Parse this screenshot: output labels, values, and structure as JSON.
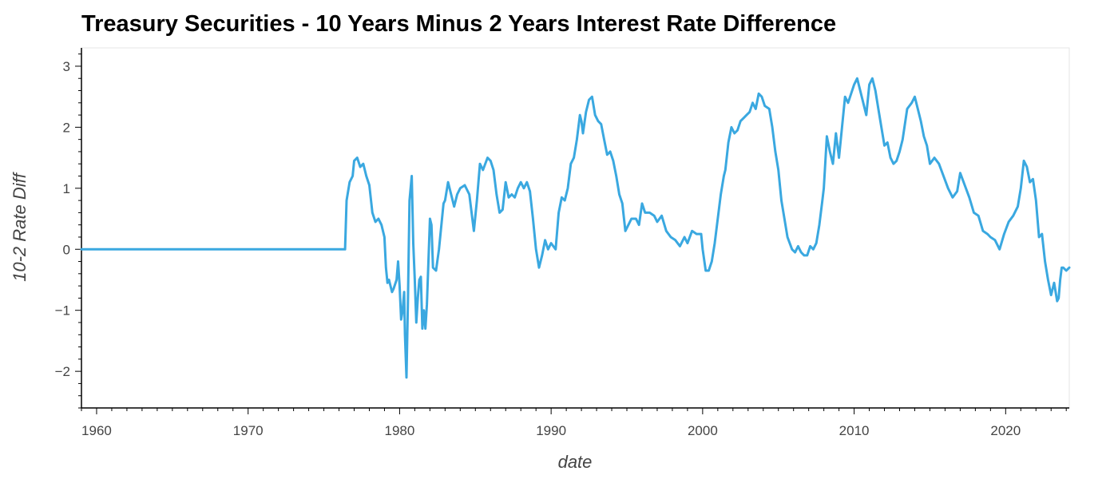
{
  "chart_data": {
    "type": "line",
    "title": "Treasury Securities - 10 Years Minus 2 Years Interest Rate Difference",
    "xlabel": "date",
    "ylabel": "10-2 Rate Diff",
    "xlim": [
      1959.0,
      2024.2
    ],
    "ylim": [
      -2.6,
      3.3
    ],
    "x_ticks": [
      1960,
      1970,
      1980,
      1990,
      2000,
      2010,
      2020
    ],
    "x_tick_labels": [
      "1960",
      "1970",
      "1980",
      "1990",
      "2000",
      "2010",
      "2020"
    ],
    "y_ticks": [
      -2,
      -1,
      0,
      1,
      2,
      3
    ],
    "y_tick_labels": [
      "−2",
      "−1",
      "0",
      "1",
      "2",
      "3"
    ],
    "grid": false,
    "legend": "none",
    "series": [
      {
        "color": "#3aa8e0",
        "points": [
          [
            1959.0,
            0
          ],
          [
            1976.4,
            0
          ],
          [
            1976.5,
            0.8
          ],
          [
            1976.7,
            1.1
          ],
          [
            1976.9,
            1.2
          ],
          [
            1977.0,
            1.45
          ],
          [
            1977.2,
            1.5
          ],
          [
            1977.4,
            1.35
          ],
          [
            1977.6,
            1.4
          ],
          [
            1977.8,
            1.2
          ],
          [
            1978.0,
            1.05
          ],
          [
            1978.2,
            0.6
          ],
          [
            1978.4,
            0.45
          ],
          [
            1978.6,
            0.5
          ],
          [
            1978.8,
            0.4
          ],
          [
            1979.0,
            0.2
          ],
          [
            1979.1,
            -0.3
          ],
          [
            1979.2,
            -0.55
          ],
          [
            1979.3,
            -0.5
          ],
          [
            1979.5,
            -0.7
          ],
          [
            1979.6,
            -0.65
          ],
          [
            1979.8,
            -0.5
          ],
          [
            1979.9,
            -0.2
          ],
          [
            1980.0,
            -0.6
          ],
          [
            1980.1,
            -1.15
          ],
          [
            1980.2,
            -1.0
          ],
          [
            1980.3,
            -0.7
          ],
          [
            1980.35,
            -1.4
          ],
          [
            1980.45,
            -2.1
          ],
          [
            1980.55,
            -0.8
          ],
          [
            1980.65,
            0.8
          ],
          [
            1980.8,
            1.2
          ],
          [
            1980.9,
            0.1
          ],
          [
            1981.0,
            -0.5
          ],
          [
            1981.1,
            -1.2
          ],
          [
            1981.2,
            -0.8
          ],
          [
            1981.3,
            -0.5
          ],
          [
            1981.4,
            -0.45
          ],
          [
            1981.5,
            -1.3
          ],
          [
            1981.6,
            -1.0
          ],
          [
            1981.7,
            -1.3
          ],
          [
            1981.8,
            -0.9
          ],
          [
            1981.9,
            -0.2
          ],
          [
            1982.0,
            0.5
          ],
          [
            1982.1,
            0.4
          ],
          [
            1982.2,
            -0.3
          ],
          [
            1982.4,
            -0.35
          ],
          [
            1982.6,
            0.0
          ],
          [
            1982.8,
            0.5
          ],
          [
            1982.9,
            0.75
          ],
          [
            1983.0,
            0.8
          ],
          [
            1983.2,
            1.1
          ],
          [
            1983.4,
            0.9
          ],
          [
            1983.6,
            0.7
          ],
          [
            1983.8,
            0.9
          ],
          [
            1984.0,
            1.0
          ],
          [
            1984.3,
            1.05
          ],
          [
            1984.6,
            0.9
          ],
          [
            1984.9,
            0.3
          ],
          [
            1985.1,
            0.8
          ],
          [
            1985.3,
            1.4
          ],
          [
            1985.5,
            1.3
          ],
          [
            1985.8,
            1.5
          ],
          [
            1986.0,
            1.45
          ],
          [
            1986.2,
            1.3
          ],
          [
            1986.4,
            0.9
          ],
          [
            1986.6,
            0.6
          ],
          [
            1986.8,
            0.65
          ],
          [
            1987.0,
            1.1
          ],
          [
            1987.2,
            0.85
          ],
          [
            1987.4,
            0.9
          ],
          [
            1987.6,
            0.85
          ],
          [
            1987.8,
            1.0
          ],
          [
            1988.0,
            1.1
          ],
          [
            1988.2,
            1.0
          ],
          [
            1988.4,
            1.1
          ],
          [
            1988.6,
            0.95
          ],
          [
            1988.8,
            0.5
          ],
          [
            1989.0,
            0.0
          ],
          [
            1989.2,
            -0.3
          ],
          [
            1989.4,
            -0.1
          ],
          [
            1989.6,
            0.15
          ],
          [
            1989.8,
            0.0
          ],
          [
            1990.0,
            0.1
          ],
          [
            1990.3,
            0.0
          ],
          [
            1990.5,
            0.6
          ],
          [
            1990.7,
            0.85
          ],
          [
            1990.9,
            0.8
          ],
          [
            1991.1,
            1.0
          ],
          [
            1991.3,
            1.4
          ],
          [
            1991.5,
            1.5
          ],
          [
            1991.7,
            1.8
          ],
          [
            1991.9,
            2.2
          ],
          [
            1992.0,
            2.1
          ],
          [
            1992.1,
            1.9
          ],
          [
            1992.3,
            2.25
          ],
          [
            1992.5,
            2.45
          ],
          [
            1992.7,
            2.5
          ],
          [
            1992.9,
            2.2
          ],
          [
            1993.1,
            2.1
          ],
          [
            1993.3,
            2.05
          ],
          [
            1993.5,
            1.8
          ],
          [
            1993.7,
            1.55
          ],
          [
            1993.9,
            1.6
          ],
          [
            1994.1,
            1.45
          ],
          [
            1994.3,
            1.2
          ],
          [
            1994.5,
            0.9
          ],
          [
            1994.7,
            0.75
          ],
          [
            1994.9,
            0.3
          ],
          [
            1995.1,
            0.4
          ],
          [
            1995.3,
            0.5
          ],
          [
            1995.6,
            0.5
          ],
          [
            1995.8,
            0.4
          ],
          [
            1996.0,
            0.75
          ],
          [
            1996.2,
            0.6
          ],
          [
            1996.5,
            0.6
          ],
          [
            1996.8,
            0.55
          ],
          [
            1997.0,
            0.45
          ],
          [
            1997.3,
            0.55
          ],
          [
            1997.6,
            0.3
          ],
          [
            1997.9,
            0.2
          ],
          [
            1998.2,
            0.15
          ],
          [
            1998.5,
            0.05
          ],
          [
            1998.8,
            0.2
          ],
          [
            1999.0,
            0.1
          ],
          [
            1999.3,
            0.3
          ],
          [
            1999.6,
            0.25
          ],
          [
            1999.9,
            0.25
          ],
          [
            2000.0,
            0.0
          ],
          [
            2000.2,
            -0.35
          ],
          [
            2000.4,
            -0.35
          ],
          [
            2000.6,
            -0.2
          ],
          [
            2000.8,
            0.1
          ],
          [
            2001.0,
            0.5
          ],
          [
            2001.2,
            0.9
          ],
          [
            2001.4,
            1.2
          ],
          [
            2001.5,
            1.3
          ],
          [
            2001.7,
            1.75
          ],
          [
            2001.9,
            2.0
          ],
          [
            2002.1,
            1.9
          ],
          [
            2002.3,
            1.95
          ],
          [
            2002.5,
            2.1
          ],
          [
            2002.7,
            2.15
          ],
          [
            2002.9,
            2.2
          ],
          [
            2003.1,
            2.25
          ],
          [
            2003.3,
            2.4
          ],
          [
            2003.5,
            2.3
          ],
          [
            2003.7,
            2.55
          ],
          [
            2003.9,
            2.5
          ],
          [
            2004.1,
            2.35
          ],
          [
            2004.4,
            2.3
          ],
          [
            2004.6,
            2.0
          ],
          [
            2004.8,
            1.6
          ],
          [
            2005.0,
            1.3
          ],
          [
            2005.2,
            0.8
          ],
          [
            2005.4,
            0.5
          ],
          [
            2005.6,
            0.2
          ],
          [
            2005.9,
            0.0
          ],
          [
            2006.1,
            -0.05
          ],
          [
            2006.3,
            0.05
          ],
          [
            2006.5,
            -0.05
          ],
          [
            2006.7,
            -0.1
          ],
          [
            2006.9,
            -0.1
          ],
          [
            2007.1,
            0.05
          ],
          [
            2007.3,
            0.0
          ],
          [
            2007.5,
            0.1
          ],
          [
            2007.7,
            0.4
          ],
          [
            2007.9,
            0.8
          ],
          [
            2008.0,
            1.0
          ],
          [
            2008.2,
            1.85
          ],
          [
            2008.4,
            1.6
          ],
          [
            2008.6,
            1.4
          ],
          [
            2008.8,
            1.9
          ],
          [
            2009.0,
            1.5
          ],
          [
            2009.2,
            2.0
          ],
          [
            2009.4,
            2.5
          ],
          [
            2009.6,
            2.4
          ],
          [
            2009.8,
            2.55
          ],
          [
            2010.0,
            2.7
          ],
          [
            2010.2,
            2.8
          ],
          [
            2010.4,
            2.6
          ],
          [
            2010.6,
            2.4
          ],
          [
            2010.8,
            2.2
          ],
          [
            2011.0,
            2.7
          ],
          [
            2011.2,
            2.8
          ],
          [
            2011.4,
            2.6
          ],
          [
            2011.6,
            2.3
          ],
          [
            2011.8,
            2.0
          ],
          [
            2012.0,
            1.7
          ],
          [
            2012.2,
            1.75
          ],
          [
            2012.4,
            1.5
          ],
          [
            2012.6,
            1.4
          ],
          [
            2012.8,
            1.45
          ],
          [
            2013.0,
            1.6
          ],
          [
            2013.2,
            1.8
          ],
          [
            2013.5,
            2.3
          ],
          [
            2013.8,
            2.4
          ],
          [
            2014.0,
            2.5
          ],
          [
            2014.2,
            2.3
          ],
          [
            2014.4,
            2.1
          ],
          [
            2014.6,
            1.85
          ],
          [
            2014.8,
            1.7
          ],
          [
            2015.0,
            1.4
          ],
          [
            2015.3,
            1.5
          ],
          [
            2015.6,
            1.4
          ],
          [
            2015.9,
            1.2
          ],
          [
            2016.2,
            1.0
          ],
          [
            2016.5,
            0.85
          ],
          [
            2016.8,
            0.95
          ],
          [
            2017.0,
            1.25
          ],
          [
            2017.3,
            1.05
          ],
          [
            2017.6,
            0.85
          ],
          [
            2017.9,
            0.6
          ],
          [
            2018.2,
            0.55
          ],
          [
            2018.5,
            0.3
          ],
          [
            2018.8,
            0.25
          ],
          [
            2019.0,
            0.2
          ],
          [
            2019.3,
            0.15
          ],
          [
            2019.6,
            0.0
          ],
          [
            2019.9,
            0.25
          ],
          [
            2020.2,
            0.45
          ],
          [
            2020.5,
            0.55
          ],
          [
            2020.8,
            0.7
          ],
          [
            2021.0,
            1.0
          ],
          [
            2021.2,
            1.45
          ],
          [
            2021.4,
            1.35
          ],
          [
            2021.6,
            1.1
          ],
          [
            2021.8,
            1.15
          ],
          [
            2022.0,
            0.8
          ],
          [
            2022.2,
            0.2
          ],
          [
            2022.4,
            0.25
          ],
          [
            2022.6,
            -0.2
          ],
          [
            2022.8,
            -0.5
          ],
          [
            2023.0,
            -0.75
          ],
          [
            2023.2,
            -0.55
          ],
          [
            2023.4,
            -0.85
          ],
          [
            2023.5,
            -0.8
          ],
          [
            2023.6,
            -0.5
          ],
          [
            2023.7,
            -0.3
          ],
          [
            2023.8,
            -0.3
          ],
          [
            2024.0,
            -0.35
          ],
          [
            2024.2,
            -0.3
          ]
        ]
      }
    ]
  }
}
